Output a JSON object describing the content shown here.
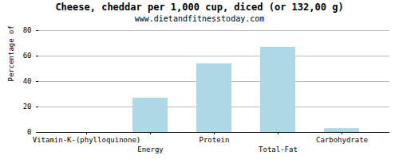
{
  "chart_data": {
    "type": "bar",
    "title": "Cheese, cheddar per 1,000 cup, diced (or 132,00 g)",
    "subtitle": "www.dietandfitnesstoday.com",
    "categories": [
      "Vitamin-K-(phylloquinone)",
      "Energy",
      "Protein",
      "Total-Fat",
      "Carbohydrate"
    ],
    "values": [
      0,
      27,
      54,
      67,
      3
    ],
    "color": "#add8e6",
    "ylabel": "Percentage of RDH (%)",
    "ylim": [
      0,
      80
    ],
    "yticks": [
      0,
      20,
      40,
      60,
      80
    ],
    "grid": true
  }
}
